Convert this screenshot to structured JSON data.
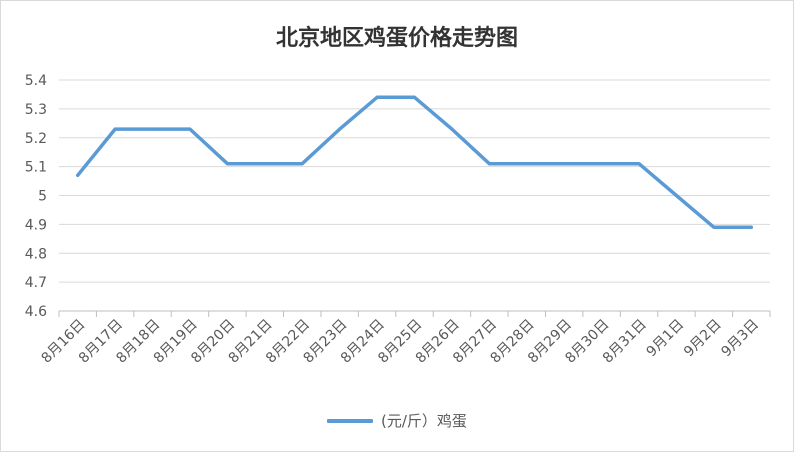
{
  "chart_data": {
    "type": "line",
    "title": "北京地区鸡蛋价格走势图",
    "categories": [
      "8月16日",
      "8月17日",
      "8月18日",
      "8月19日",
      "8月20日",
      "8月21日",
      "8月22日",
      "8月23日",
      "8月24日",
      "8月25日",
      "8月26日",
      "8月27日",
      "8月28日",
      "8月29日",
      "8月30日",
      "8月31日",
      "9月1日",
      "9月2日",
      "9月3日"
    ],
    "series": [
      {
        "name": "(元/斤）鸡蛋",
        "color": "#5b9bd5",
        "values": [
          5.07,
          5.23,
          5.23,
          5.23,
          5.11,
          5.11,
          5.11,
          5.23,
          5.34,
          5.34,
          5.23,
          5.11,
          5.11,
          5.11,
          5.11,
          5.11,
          5.0,
          4.89,
          4.89
        ]
      }
    ],
    "ylim": [
      4.6,
      5.4
    ],
    "yticks": [
      "4.6",
      "4.7",
      "4.8",
      "4.9",
      "5",
      "5.1",
      "5.2",
      "5.3",
      "5.4"
    ],
    "grid": true,
    "legend_position": "bottom"
  }
}
